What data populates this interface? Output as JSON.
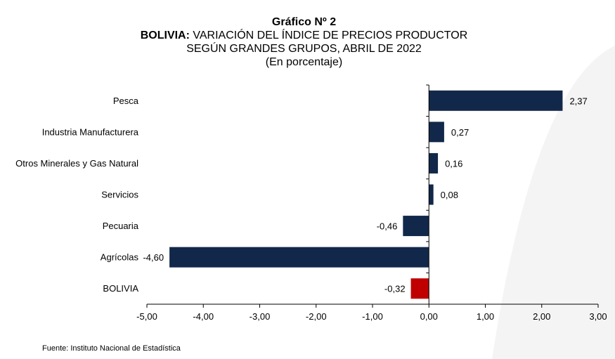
{
  "titles": {
    "line1": "Gráfico Nº 2",
    "line2_bold": "BOLIVIA:",
    "line2_rest": " VARIACIÓN DEL ÍNDICE DE PRECIOS PRODUCTOR",
    "line3": "SEGÚN GRANDES GRUPOS, ABRIL DE 2022",
    "line4": "(En porcentaje)"
  },
  "source": "Fuente: Instituto Nacional de Estadística",
  "colors": {
    "bar": "#12284a",
    "highlight": "#c00000",
    "axis": "#000000"
  },
  "chart_data": {
    "type": "bar",
    "orientation": "horizontal",
    "categories": [
      "Pesca",
      "Industria Manufacturera",
      "Otros Minerales y Gas Natural",
      "Servicios",
      "Pecuaria",
      "Agrícolas",
      "BOLIVIA"
    ],
    "values": [
      2.37,
      0.27,
      0.16,
      0.08,
      -0.46,
      -4.6,
      -0.32
    ],
    "data_labels": [
      "2,37",
      "0,27",
      "0,16",
      "0,08",
      "-0,46",
      "-4,60",
      "-0,32"
    ],
    "highlight_category": "BOLIVIA",
    "xlim": [
      -5,
      3
    ],
    "xticks": [
      -5,
      -4,
      -3,
      -2,
      -1,
      0,
      1,
      2,
      3
    ],
    "xtick_labels": [
      "-5,00",
      "-4,00",
      "-3,00",
      "-2,00",
      "-1,00",
      "0,00",
      "1,00",
      "2,00",
      "3,00"
    ],
    "grid": false,
    "legend": "none"
  }
}
